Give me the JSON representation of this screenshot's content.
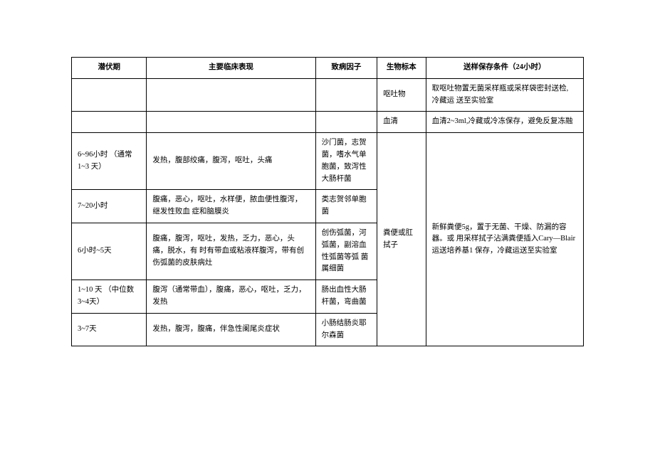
{
  "headers": {
    "incubation": "潜伏期",
    "symptoms": "主要临床表现",
    "pathogen": "致病因子",
    "specimen": "生物标本",
    "storage": "送样保存条件（24小时）"
  },
  "topRows": [
    {
      "specimen": "呕吐物",
      "storage": "取呕吐物置无菌采样瓶或采样袋密封送检, 冷藏运   送至实验室"
    },
    {
      "specimen": "血清",
      "storage": "血清2~3ml,冷藏或冷冻保存，避免反复冻融"
    }
  ],
  "mergedSpecimen": "粪便或肛拭子",
  "mergedStorage": "新鲜粪便5g，置于无菌、干燥、防漏的容器。或  用采样拭子沾满粪便插入Cary—Blair运送培养基1  保存，冷藏运送至实验室",
  "rows": [
    {
      "incubation": "6~96小时 （通常1~3  天）",
      "symptoms": "发热，腹部绞痛，腹泻，呕吐，头痛",
      "pathogen": "沙门菌，志贺菌，嗜水气单胞菌，致泻性大肠杆菌"
    },
    {
      "incubation": "7~20小时",
      "symptoms": "腹痛，恶心，呕吐，水样便，脓血便性腹泻，继发性败血  症和脑膜炎",
      "pathogen": "类志贺邻单胞菌"
    },
    {
      "incubation": "6小时~5天",
      "symptoms": "腹痛，腹泻，呕吐，发热，乏力，恶心，头痛，脱水，有  时有带血或粘液样腹泻，带有创伤弧菌的皮肤病灶",
      "pathogen": "创伤弧菌，河弧菌，副溶血性弧菌等弧   菌属细菌"
    },
    {
      "incubation": "1~10 天\n （中位数3~4天）",
      "symptoms": "腹泻（通常带血），腹痛，恶心，呕吐，乏力，发热",
      "pathogen": "肠出血性大肠杆菌，弯曲菌"
    },
    {
      "incubation": "3~7天",
      "symptoms": "发热，腹泻，腹痛，伴急性阑尾炎症状",
      "pathogen": "小肠结肠炎耶尔森菌"
    }
  ]
}
